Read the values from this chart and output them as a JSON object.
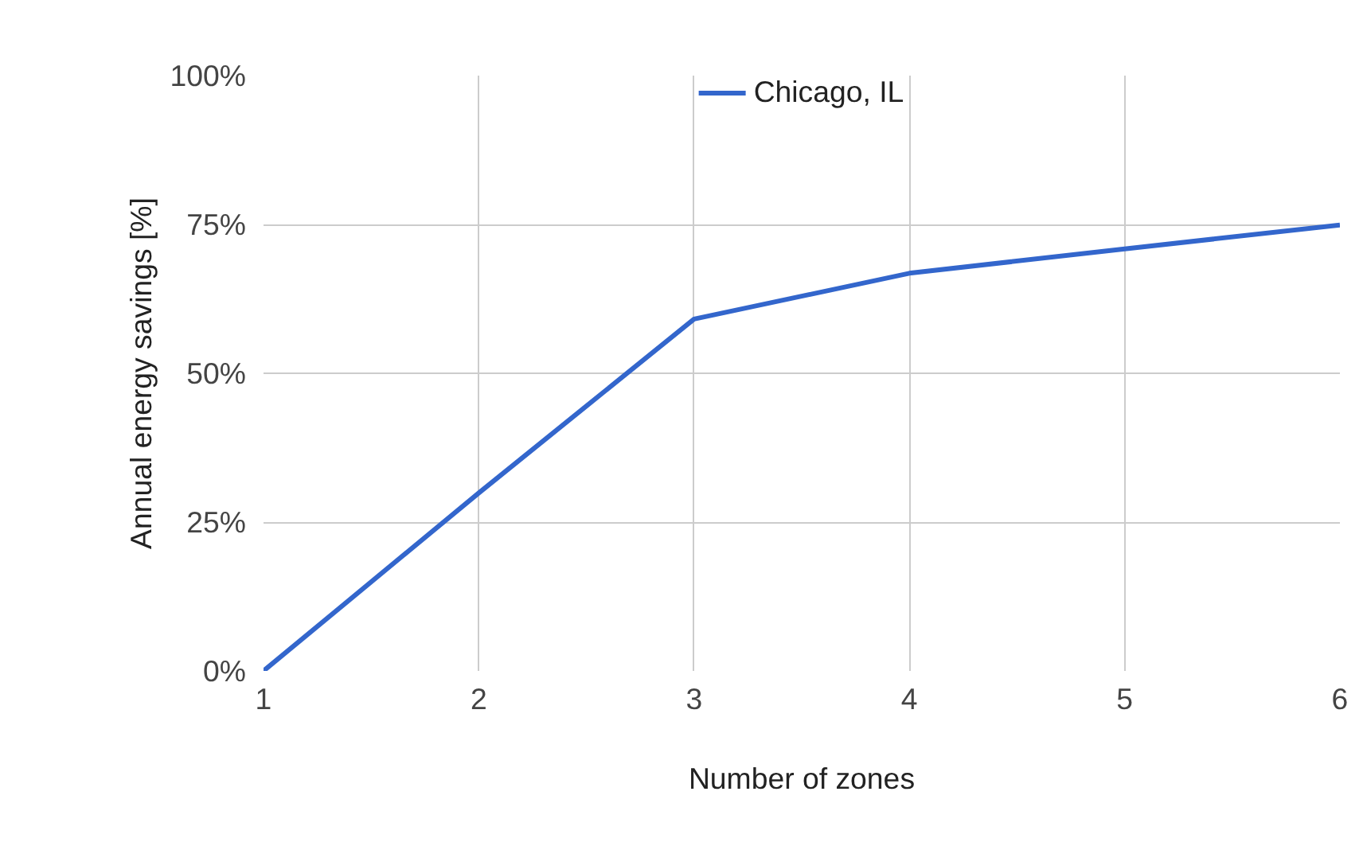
{
  "chart_data": {
    "type": "line",
    "xlabel": "Number of zones",
    "ylabel": "Annual energy savings [%]",
    "x": [
      1,
      2,
      3,
      4,
      5,
      6
    ],
    "series": [
      {
        "name": "Chicago, IL",
        "color": "#3366cc",
        "values": [
          0,
          29.9,
          59.1,
          66.8,
          70.9,
          74.9
        ]
      }
    ],
    "xlim": [
      1,
      6
    ],
    "xticks": [
      1,
      2,
      3,
      4,
      5,
      6
    ],
    "ylim": [
      0,
      100
    ],
    "yticks": [
      {
        "value": 0,
        "label": "0%"
      },
      {
        "value": 25,
        "label": "25%"
      },
      {
        "value": 50,
        "label": "50%"
      },
      {
        "value": 75,
        "label": "75%"
      },
      {
        "value": 100,
        "label": "100%"
      }
    ],
    "grid": true,
    "legend": "top",
    "marker": "none",
    "line_style": "solid"
  }
}
